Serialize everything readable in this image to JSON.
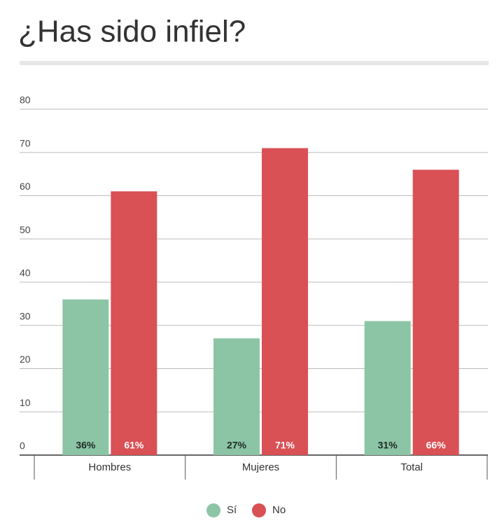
{
  "chart_data": {
    "type": "bar",
    "title": "¿Has sido infiel?",
    "categories": [
      "Hombres",
      "Mujeres",
      "Total"
    ],
    "series": [
      {
        "name": "Sí",
        "color": "#8cc5a5",
        "values": [
          36,
          27,
          31
        ],
        "value_labels": [
          "36%",
          "27%",
          "31%"
        ]
      },
      {
        "name": "No",
        "color": "#d95055",
        "values": [
          61,
          71,
          66
        ],
        "value_labels": [
          "61%",
          "71%",
          "66%"
        ]
      }
    ],
    "ylim": [
      0,
      80
    ],
    "yticks": [
      0,
      10,
      20,
      30,
      40,
      50,
      60,
      70,
      80
    ],
    "grid": true,
    "legend": "bottom"
  }
}
